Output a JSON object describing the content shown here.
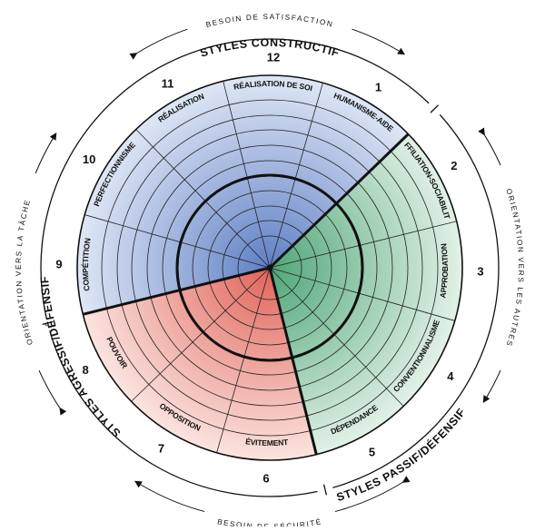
{
  "segments": [
    {
      "number": "1",
      "label": "HUMANISME-AIDE"
    },
    {
      "number": "2",
      "label": "AFFILIATION-SOCIABILITÉ"
    },
    {
      "number": "3",
      "label": "APPROBATION"
    },
    {
      "number": "4",
      "label": "CONVENTIONNALISME"
    },
    {
      "number": "5",
      "label": "DÉPENDANCE"
    },
    {
      "number": "6",
      "label": "ÉVITEMENT"
    },
    {
      "number": "7",
      "label": "OPPOSITION"
    },
    {
      "number": "8",
      "label": "POUVOIR"
    },
    {
      "number": "9",
      "label": "COMPÉTITION"
    },
    {
      "number": "10",
      "label": "PERFECTIONNISME"
    },
    {
      "number": "11",
      "label": "RÉALISATION"
    },
    {
      "number": "12",
      "label": "RÉALISATION DE SOI"
    }
  ],
  "styles": {
    "constructive": "STYLES CONSTRUCTIF",
    "passive": "STYLES PASSIF/DÉFENSIF",
    "aggressive": "STYLES AGRESSIF/DÉFENSIF"
  },
  "orientations": {
    "top": "BESOIN DE SATISFACTION",
    "bottom": "BESOIN DE SÉCURITÉ",
    "left": "ORIENTATION VERS LA TÂCHE",
    "right": "ORIENTATION VERS LES AUTRES"
  },
  "colors": {
    "constructive": "#9fb2dc",
    "passive": "#9fcfb2",
    "aggressive": "#ec9a8e"
  }
}
